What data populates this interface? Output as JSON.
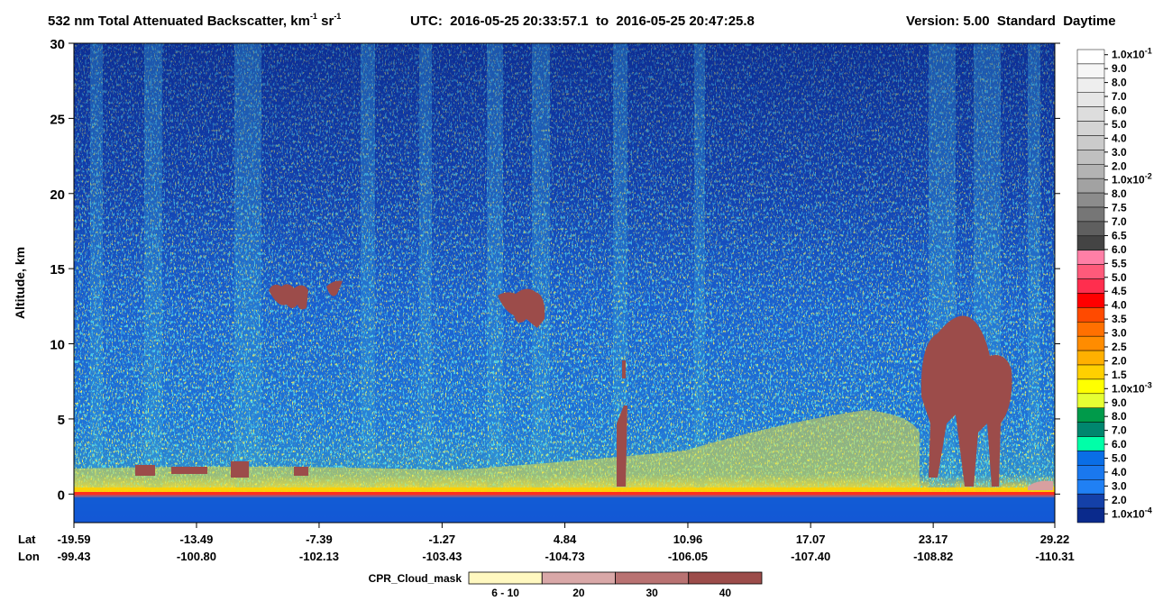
{
  "chart_data": {
    "type": "curtain",
    "title_parts": [
      "532 nm Total Attenuated Backscatter, km",
      "-1",
      " sr",
      "-1"
    ],
    "time_range": "UTC:  2016-05-25 20:33:57.1  to  2016-05-25 20:47:25.8",
    "version": "Version: 5.00  Standard  Daytime",
    "y_label": "Altitude, km",
    "ylim": [
      -1.9,
      30
    ],
    "yticks": [
      0,
      5,
      10,
      15,
      20,
      25,
      30
    ],
    "lat_label": "Lat",
    "lon_label": "Lon",
    "xlim": [
      -19.59,
      29.22
    ],
    "lat_ticks": [
      -19.59,
      -13.49,
      -7.39,
      -1.27,
      4.84,
      10.96,
      17.07,
      23.17,
      29.22
    ],
    "lon_ticks": [
      {
        "value": -99.43,
        "label": "-99.43"
      },
      {
        "value": -100.8,
        "label": "-100.80"
      },
      {
        "value": -102.13,
        "label": "-102.13"
      },
      {
        "value": -103.43,
        "label": "-103.43"
      },
      {
        "value": -104.73,
        "label": "-104.73"
      },
      {
        "value": -106.05,
        "label": "-106.05"
      },
      {
        "value": -107.4,
        "label": "-107.40"
      },
      {
        "value": -108.82,
        "label": "-108.82"
      },
      {
        "value": -110.31,
        "label": "-110.31"
      }
    ],
    "colorbar_labels": [
      {
        "value": 0.1,
        "label": "1.0x10",
        "exponent": "-1"
      },
      {
        "value": 0.09,
        "label": "9.0"
      },
      {
        "value": 0.08,
        "label": "8.0"
      },
      {
        "value": 0.07,
        "label": "7.0"
      },
      {
        "value": 0.06,
        "label": "6.0"
      },
      {
        "value": 0.05,
        "label": "5.0"
      },
      {
        "value": 0.04,
        "label": "4.0"
      },
      {
        "value": 0.03,
        "label": "3.0"
      },
      {
        "value": 0.02,
        "label": "2.0"
      },
      {
        "value": 0.01,
        "label": "1.0x10",
        "exponent": "-2"
      },
      {
        "value": 0.008,
        "label": "8.0"
      },
      {
        "value": 0.0075,
        "label": "7.5"
      },
      {
        "value": 0.007,
        "label": "7.0"
      },
      {
        "value": 0.0065,
        "label": "6.5"
      },
      {
        "value": 0.006,
        "label": "6.0"
      },
      {
        "value": 0.0055,
        "label": "5.5"
      },
      {
        "value": 0.005,
        "label": "5.0"
      },
      {
        "value": 0.0045,
        "label": "4.5"
      },
      {
        "value": 0.004,
        "label": "4.0"
      },
      {
        "value": 0.0035,
        "label": "3.5"
      },
      {
        "value": 0.003,
        "label": "3.0"
      },
      {
        "value": 0.0025,
        "label": "2.5"
      },
      {
        "value": 0.002,
        "label": "2.0"
      },
      {
        "value": 0.0015,
        "label": "1.5"
      },
      {
        "value": 0.001,
        "label": "1.0x10",
        "exponent": "-3"
      },
      {
        "value": 0.0009,
        "label": "9.0"
      },
      {
        "value": 0.0008,
        "label": "8.0"
      },
      {
        "value": 0.0007,
        "label": "7.0"
      },
      {
        "value": 0.0006,
        "label": "6.0"
      },
      {
        "value": 0.0005,
        "label": "5.0"
      },
      {
        "value": 0.0004,
        "label": "4.0"
      },
      {
        "value": 0.0003,
        "label": "3.0"
      },
      {
        "value": 0.0002,
        "label": "2.0"
      },
      {
        "value": 0.0001,
        "label": "1.0x10",
        "exponent": "-4"
      }
    ],
    "colorbar_colors": [
      "#ffffff",
      "#f6f6f6",
      "#eeeeee",
      "#e6e6e6",
      "#dddddd",
      "#d4d4d4",
      "#cbcbcb",
      "#c0c0c0",
      "#b3b3b3",
      "#a2a2a2",
      "#8c8c8c",
      "#767676",
      "#5f5f5f",
      "#444444",
      "#ff7fa6",
      "#ff5a7a",
      "#ff2e4e",
      "#ff0000",
      "#ff4a00",
      "#ff7000",
      "#ff8c00",
      "#ffb000",
      "#ffd000",
      "#ffff00",
      "#e6ff33",
      "#009a4a",
      "#00866e",
      "#00ffa8",
      "#0a6ee6",
      "#1a78ee",
      "#2080f4",
      "#1440a8",
      "#0a2a8c"
    ],
    "cloud_mask_label": "CPR_Cloud_mask",
    "cloud_mask_categories": [
      "6 - 10",
      "20",
      "30",
      "40"
    ],
    "cloud_mask_colors": [
      "#fff8c0",
      "#d9a8a8",
      "#b97272",
      "#9c4c4a"
    ]
  }
}
